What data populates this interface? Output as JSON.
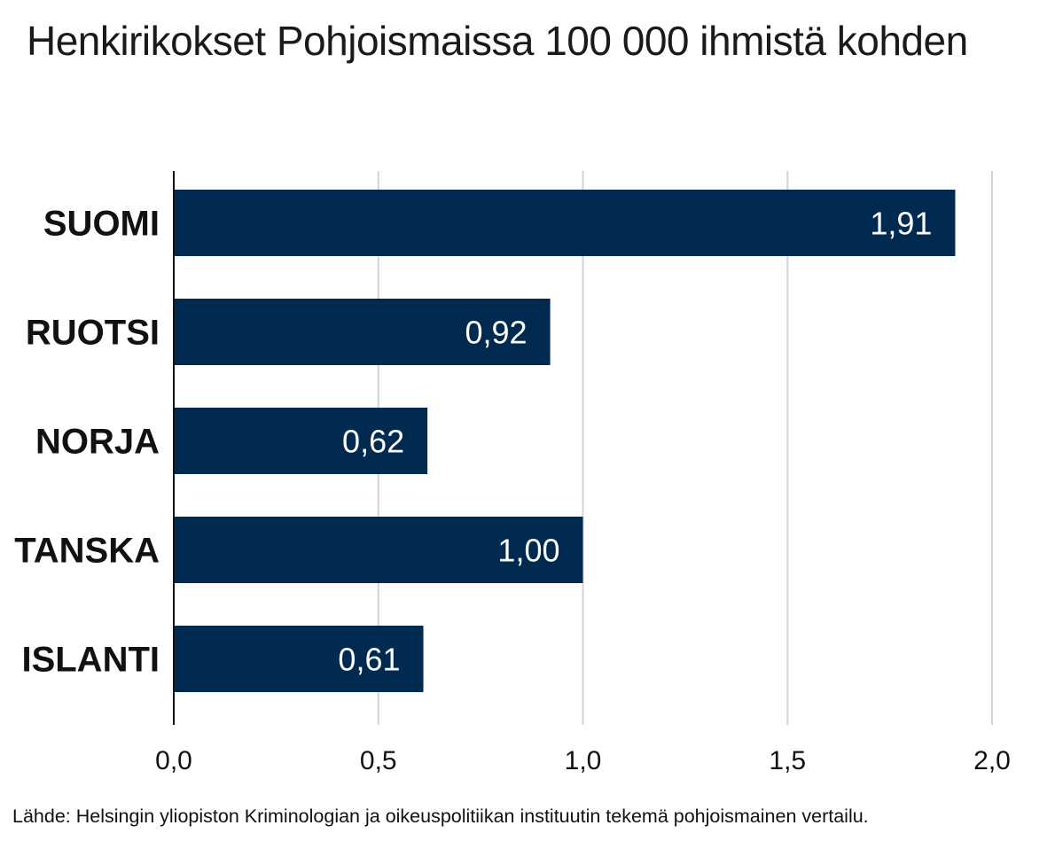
{
  "chart_data": {
    "type": "bar",
    "orientation": "horizontal",
    "title": "Henkirikokset Pohjoismaissa 100 000 ihmistä kohden",
    "categories": [
      "SUOMI",
      "RUOTSI",
      "NORJA",
      "TANSKA",
      "ISLANTI"
    ],
    "values": [
      1.91,
      0.92,
      0.62,
      1.0,
      0.61
    ],
    "value_labels": [
      "1,91",
      "0,92",
      "0,62",
      "1,00",
      "0,61"
    ],
    "xlim": [
      0,
      2
    ],
    "xticks": [
      0,
      0.5,
      1.0,
      1.5,
      2.0
    ],
    "xtick_labels": [
      "0,0",
      "0,5",
      "1,0",
      "1,5",
      "2,0"
    ],
    "xlabel": "",
    "ylabel": "",
    "grid": "vertical",
    "bar_color": "#002a4f",
    "grid_color": "#d4d4d4",
    "source": "Lähde: Helsingin yliopiston Kriminologian ja oikeuspolitiikan instituutin tekemä pohjoismainen vertailu."
  }
}
